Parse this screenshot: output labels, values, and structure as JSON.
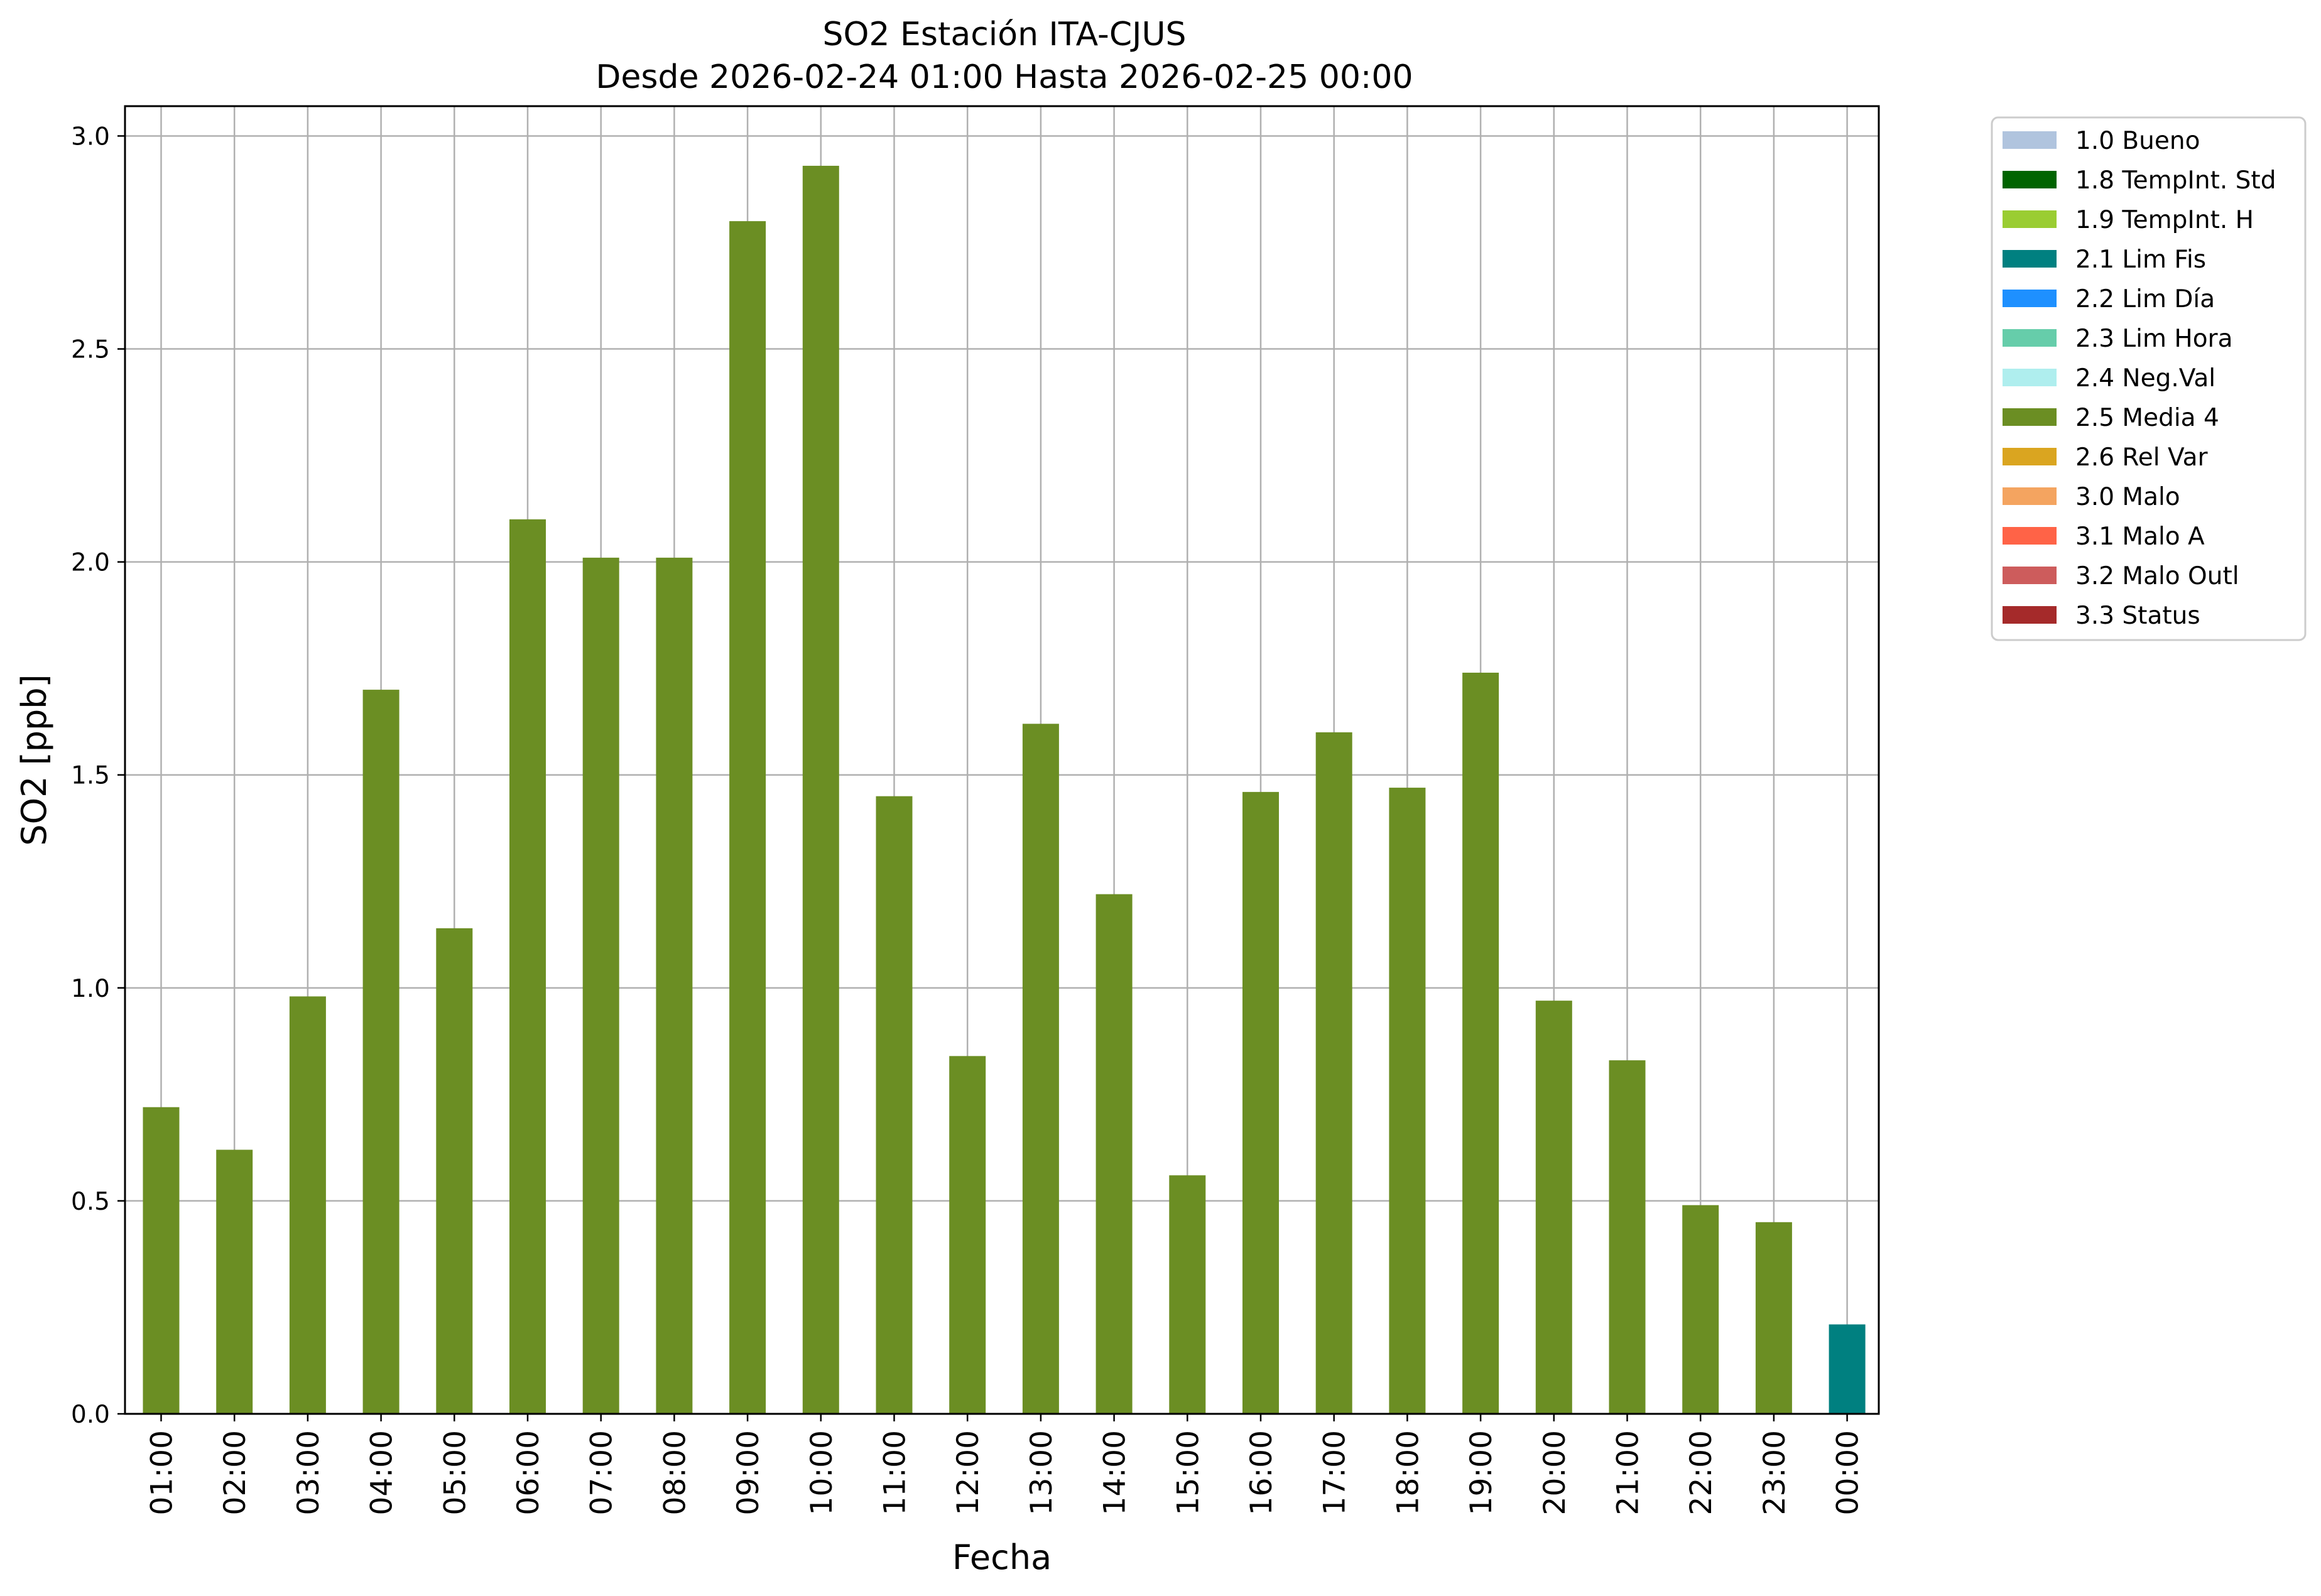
{
  "chart_data": {
    "type": "bar",
    "title": "SO2 Estación ITA-CJUS",
    "subtitle": "Desde 2026-02-24 01:00 Hasta 2026-02-25 00:00",
    "xlabel": "Fecha",
    "ylabel": "SO2 [ppb]",
    "ylim": [
      0,
      3.07
    ],
    "yticks": [
      "0.0",
      "0.5",
      "1.0",
      "1.5",
      "2.0",
      "2.5",
      "3.0"
    ],
    "grid": true,
    "legend_position": "outside-right",
    "categories": [
      "01:00",
      "02:00",
      "03:00",
      "04:00",
      "05:00",
      "06:00",
      "07:00",
      "08:00",
      "09:00",
      "10:00",
      "11:00",
      "12:00",
      "13:00",
      "14:00",
      "15:00",
      "16:00",
      "17:00",
      "18:00",
      "19:00",
      "20:00",
      "21:00",
      "22:00",
      "23:00",
      "00:00"
    ],
    "values": [
      0.72,
      0.62,
      0.98,
      1.7,
      1.14,
      2.1,
      2.01,
      2.01,
      2.8,
      2.93,
      1.45,
      0.84,
      1.62,
      1.22,
      0.56,
      1.46,
      1.6,
      1.47,
      1.74,
      0.97,
      0.83,
      0.49,
      0.45,
      0.21
    ],
    "flags": [
      "2.5",
      "2.5",
      "2.5",
      "2.5",
      "2.5",
      "2.5",
      "2.5",
      "2.5",
      "2.5",
      "2.5",
      "2.5",
      "2.5",
      "2.5",
      "2.5",
      "2.5",
      "2.5",
      "2.5",
      "2.5",
      "2.5",
      "2.5",
      "2.5",
      "2.5",
      "2.5",
      "2.1"
    ],
    "legend": [
      {
        "code": "1.0",
        "label": "1.0 Bueno",
        "color": "#B0C4DE"
      },
      {
        "code": "1.8",
        "label": "1.8 TempInt. Std",
        "color": "#006400"
      },
      {
        "code": "1.9",
        "label": "1.9 TempInt. H",
        "color": "#9ACD32"
      },
      {
        "code": "2.1",
        "label": "2.1 Lim Fis",
        "color": "#008080"
      },
      {
        "code": "2.2",
        "label": "2.2 Lim Día",
        "color": "#1E90FF"
      },
      {
        "code": "2.3",
        "label": "2.3 Lim Hora",
        "color": "#66CDAA"
      },
      {
        "code": "2.4",
        "label": "2.4 Neg.Val",
        "color": "#AFEEEE"
      },
      {
        "code": "2.5",
        "label": "2.5 Media 4",
        "color": "#6B8E23"
      },
      {
        "code": "2.6",
        "label": "2.6 Rel Var",
        "color": "#DAA520"
      },
      {
        "code": "3.0",
        "label": "3.0 Malo",
        "color": "#F4A460"
      },
      {
        "code": "3.1",
        "label": "3.1 Malo A",
        "color": "#FF6347"
      },
      {
        "code": "3.2",
        "label": "3.2 Malo Outl",
        "color": "#CD5C5C"
      },
      {
        "code": "3.3",
        "label": "3.3 Status",
        "color": "#A52A2A"
      }
    ]
  }
}
